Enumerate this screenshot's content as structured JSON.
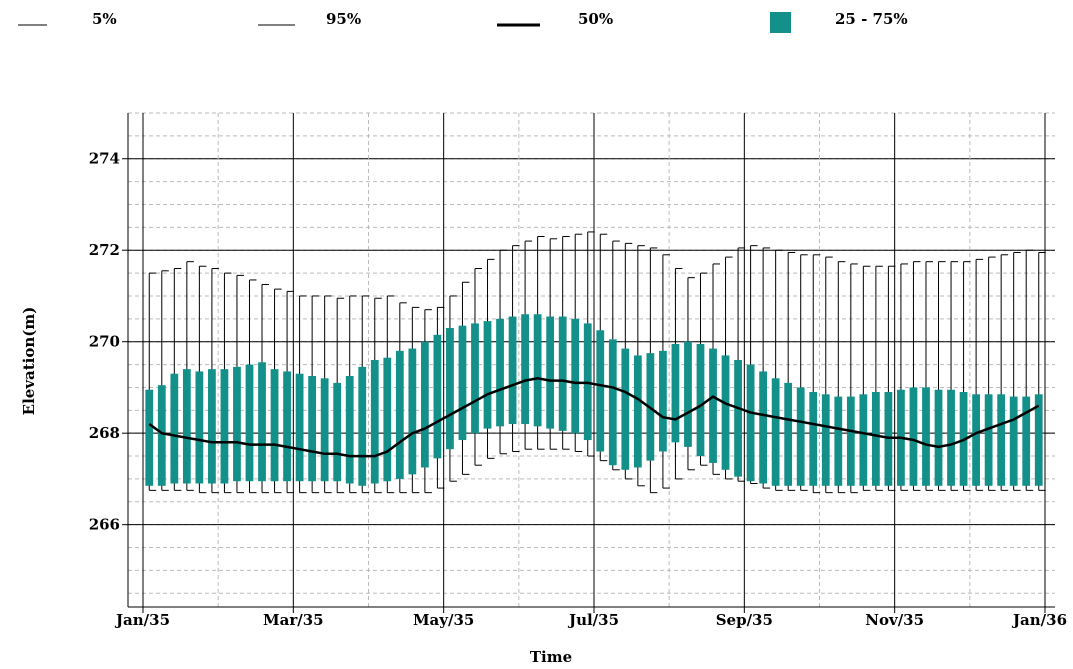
{
  "colors": {
    "box": "#129089",
    "median": "#000000",
    "whisker": "#000000",
    "grid_major": "#000000",
    "grid_minor": "#bbbbbb"
  },
  "chart_data": {
    "type": "boxplot",
    "title": "",
    "xlabel": "Time",
    "ylabel": "Elevation(m)",
    "ylim": [
      264.2,
      275
    ],
    "y_ticks": [
      266,
      268,
      270,
      272,
      274
    ],
    "x_ticks": [
      "Jan/35",
      "Mar/35",
      "May/35",
      "Jul/35",
      "Sep/35",
      "Nov/35",
      "Jan/36"
    ],
    "x_range_weeks": [
      0,
      52
    ],
    "grid": true,
    "legend": {
      "placement": "top",
      "items": [
        {
          "label": "5%",
          "style": "thin-line"
        },
        {
          "label": "95%",
          "style": "thin-line"
        },
        {
          "label": "50%",
          "style": "thick-line"
        },
        {
          "label": "25 - 75%",
          "style": "box"
        }
      ]
    },
    "series": [
      {
        "name": "5%",
        "values": [
          266.75,
          266.75,
          266.75,
          266.75,
          266.7,
          266.7,
          266.7,
          266.7,
          266.7,
          266.7,
          266.7,
          266.7,
          266.7,
          266.7,
          266.7,
          266.7,
          266.7,
          266.7,
          266.7,
          266.7,
          266.7,
          266.7,
          266.7,
          266.8,
          266.95,
          267.1,
          267.3,
          267.45,
          267.55,
          267.6,
          267.65,
          267.65,
          267.65,
          267.65,
          267.6,
          267.5,
          267.4,
          267.2,
          267.0,
          266.85,
          266.7,
          266.8,
          267.0,
          267.2,
          267.3,
          267.1,
          267.0,
          266.95,
          266.9,
          266.8,
          266.75,
          266.75,
          266.75,
          266.7,
          266.7,
          266.7,
          266.7,
          266.75,
          266.75,
          266.75,
          266.75,
          266.75,
          266.75,
          266.75,
          266.75,
          266.75,
          266.75,
          266.75,
          266.75,
          266.75,
          266.75,
          266.75,
          266.75,
          266.75,
          266.75,
          266.75,
          266.75,
          266.75,
          266.75,
          266.75,
          266.75,
          266.75
        ]
      },
      {
        "name": "95%",
        "values": [
          271.5,
          271.55,
          271.6,
          271.75,
          271.65,
          271.6,
          271.5,
          271.45,
          271.35,
          271.25,
          271.15,
          271.1,
          271.0,
          271.0,
          271.0,
          270.95,
          271.0,
          271.0,
          270.95,
          271.0,
          270.85,
          270.75,
          270.7,
          270.75,
          271.0,
          271.3,
          271.6,
          271.8,
          272.0,
          272.1,
          272.2,
          272.3,
          272.25,
          272.3,
          272.35,
          272.4,
          272.35,
          272.2,
          272.15,
          272.1,
          272.05,
          271.9,
          271.6,
          271.4,
          271.5,
          271.7,
          271.85,
          272.05,
          272.1,
          272.05,
          272.0,
          271.95,
          271.9,
          271.9,
          271.85,
          271.75,
          271.7,
          271.65,
          271.65,
          271.65,
          271.7,
          271.75,
          271.75,
          271.75,
          271.75,
          271.75,
          271.8,
          271.85,
          271.9,
          271.95,
          272.0,
          271.95,
          271.95,
          271.9
        ]
      },
      {
        "name": "25%",
        "values": [
          266.85,
          266.85,
          266.9,
          266.9,
          266.9,
          266.9,
          266.9,
          266.95,
          266.95,
          266.95,
          266.95,
          266.95,
          266.95,
          266.95,
          266.95,
          266.95,
          266.9,
          266.85,
          266.9,
          266.95,
          267.0,
          267.1,
          267.25,
          267.45,
          267.65,
          267.85,
          268.0,
          268.1,
          268.15,
          268.2,
          268.2,
          268.15,
          268.1,
          268.05,
          268.0,
          267.85,
          267.6,
          267.3,
          267.2,
          267.25,
          267.4,
          267.6,
          267.8,
          267.7,
          267.5,
          267.35,
          267.2,
          267.05,
          266.95,
          266.9,
          266.85,
          266.85,
          266.85,
          266.85,
          266.85,
          266.85,
          266.85,
          266.85,
          266.85,
          266.85,
          266.85,
          266.85,
          266.85,
          266.85,
          266.85,
          266.85,
          266.85,
          266.85,
          266.85,
          266.85,
          266.85,
          266.85,
          266.85,
          266.85
        ]
      },
      {
        "name": "50%",
        "values": [
          268.2,
          268.0,
          267.95,
          267.9,
          267.85,
          267.8,
          267.8,
          267.8,
          267.75,
          267.75,
          267.75,
          267.7,
          267.65,
          267.6,
          267.55,
          267.55,
          267.5,
          267.5,
          267.5,
          267.6,
          267.8,
          268.0,
          268.1,
          268.25,
          268.4,
          268.55,
          268.7,
          268.85,
          268.95,
          269.05,
          269.15,
          269.2,
          269.15,
          269.15,
          269.1,
          269.1,
          269.05,
          269.0,
          268.9,
          268.75,
          268.55,
          268.35,
          268.3,
          268.45,
          268.6,
          268.8,
          268.65,
          268.55,
          268.45,
          268.4,
          268.35,
          268.3,
          268.25,
          268.2,
          268.15,
          268.1,
          268.05,
          268.0,
          267.95,
          267.9,
          267.9,
          267.85,
          267.75,
          267.7,
          267.75,
          267.85,
          268.0,
          268.1,
          268.2,
          268.3,
          268.45,
          268.6
        ]
      },
      {
        "name": "75%",
        "values": [
          268.95,
          269.05,
          269.3,
          269.4,
          269.35,
          269.4,
          269.4,
          269.45,
          269.5,
          269.55,
          269.4,
          269.35,
          269.3,
          269.25,
          269.2,
          269.1,
          269.25,
          269.45,
          269.6,
          269.65,
          269.8,
          269.85,
          270.0,
          270.15,
          270.3,
          270.35,
          270.4,
          270.45,
          270.5,
          270.55,
          270.6,
          270.6,
          270.55,
          270.55,
          270.5,
          270.4,
          270.25,
          270.05,
          269.85,
          269.7,
          269.75,
          269.8,
          269.95,
          270.0,
          269.95,
          269.85,
          269.7,
          269.6,
          269.5,
          269.35,
          269.2,
          269.1,
          269.0,
          268.9,
          268.85,
          268.8,
          268.8,
          268.85,
          268.9,
          268.9,
          268.95,
          269.0,
          269.0,
          268.95,
          268.95,
          268.9,
          268.85,
          268.85,
          268.85,
          268.8,
          268.8,
          268.85
        ]
      }
    ]
  }
}
